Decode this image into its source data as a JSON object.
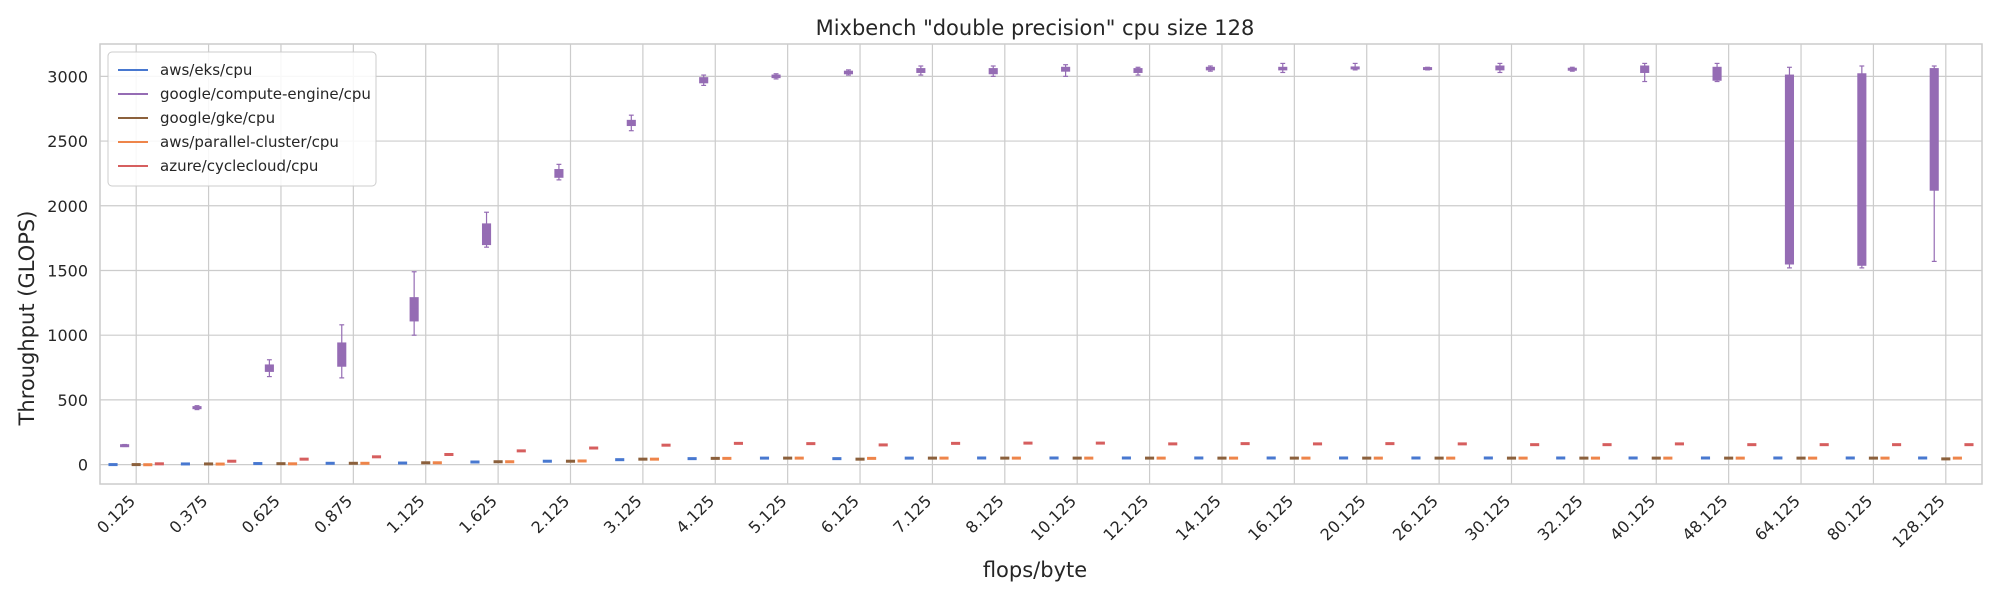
{
  "chart_data": {
    "type": "box",
    "title": "Mixbench \"double precision\" cpu size 128",
    "xlabel": "flops/byte",
    "ylabel": "Throughput (GLOPS)",
    "ylim": [
      -150,
      3250
    ],
    "yticks": [
      0,
      500,
      1000,
      1500,
      2000,
      2500,
      3000
    ],
    "grid": true,
    "legend_position": "top-left",
    "categories": [
      "0.125",
      "0.375",
      "0.625",
      "0.875",
      "1.125",
      "1.625",
      "2.125",
      "3.125",
      "4.125",
      "5.125",
      "6.125",
      "7.125",
      "8.125",
      "10.125",
      "12.125",
      "14.125",
      "16.125",
      "20.125",
      "26.125",
      "30.125",
      "32.125",
      "40.125",
      "48.125",
      "64.125",
      "80.125",
      "128.125"
    ],
    "series": [
      {
        "name": "aws/eks/cpu",
        "color": "#4878d0",
        "boxes": [
          [
            -2,
            -1,
            0,
            1,
            2
          ],
          [
            3,
            4,
            5,
            6,
            7
          ],
          [
            6,
            7,
            8,
            9,
            10
          ],
          [
            8,
            9,
            10,
            11,
            12
          ],
          [
            10,
            11,
            12,
            13,
            14
          ],
          [
            18,
            19,
            20,
            21,
            22
          ],
          [
            24,
            25,
            26,
            27,
            28
          ],
          [
            36,
            37,
            38,
            39,
            40
          ],
          [
            44,
            45,
            46,
            47,
            48
          ],
          [
            48,
            49,
            50,
            51,
            52
          ],
          [
            44,
            45,
            46,
            47,
            48
          ],
          [
            48,
            49,
            50,
            51,
            52
          ],
          [
            49,
            50,
            51,
            52,
            53
          ],
          [
            49,
            50,
            51,
            52,
            53
          ],
          [
            49,
            50,
            51,
            52,
            53
          ],
          [
            49,
            50,
            51,
            52,
            53
          ],
          [
            49,
            50,
            51,
            52,
            53
          ],
          [
            49,
            50,
            51,
            52,
            53
          ],
          [
            49,
            50,
            51,
            52,
            53
          ],
          [
            49,
            50,
            51,
            52,
            53
          ],
          [
            49,
            50,
            51,
            52,
            53
          ],
          [
            49,
            50,
            51,
            52,
            53
          ],
          [
            49,
            50,
            51,
            52,
            53
          ],
          [
            49,
            50,
            51,
            52,
            53
          ],
          [
            49,
            50,
            51,
            52,
            53
          ],
          [
            49,
            50,
            51,
            52,
            53
          ]
        ]
      },
      {
        "name": "google/compute-engine/cpu",
        "color": "#956cb4",
        "boxes": [
          [
            140,
            142,
            146,
            150,
            155
          ],
          [
            425,
            432,
            440,
            448,
            455
          ],
          [
            680,
            720,
            745,
            770,
            810
          ],
          [
            670,
            760,
            850,
            940,
            1080
          ],
          [
            1000,
            1110,
            1200,
            1290,
            1490
          ],
          [
            1680,
            1700,
            1780,
            1860,
            1950
          ],
          [
            2200,
            2220,
            2250,
            2280,
            2320
          ],
          [
            2580,
            2620,
            2640,
            2660,
            2700
          ],
          [
            2930,
            2950,
            2970,
            2990,
            3010
          ],
          [
            2980,
            2990,
            3000,
            3010,
            3020
          ],
          [
            3010,
            3020,
            3030,
            3040,
            3050
          ],
          [
            3010,
            3030,
            3040,
            3060,
            3080
          ],
          [
            3000,
            3020,
            3040,
            3060,
            3080
          ],
          [
            3000,
            3040,
            3050,
            3070,
            3090
          ],
          [
            3010,
            3030,
            3040,
            3060,
            3070
          ],
          [
            3040,
            3050,
            3060,
            3070,
            3080
          ],
          [
            3030,
            3050,
            3060,
            3070,
            3100
          ],
          [
            3050,
            3060,
            3065,
            3070,
            3100
          ],
          [
            3050,
            3055,
            3060,
            3065,
            3070
          ],
          [
            3030,
            3050,
            3060,
            3080,
            3100
          ],
          [
            3040,
            3050,
            3055,
            3060,
            3070
          ],
          [
            2960,
            3030,
            3060,
            3080,
            3100
          ],
          [
            2960,
            2970,
            3020,
            3070,
            3100
          ],
          [
            1520,
            1550,
            2200,
            3010,
            3070
          ],
          [
            1520,
            1540,
            2150,
            3020,
            3080
          ],
          [
            1570,
            2120,
            2700,
            3060,
            3080
          ]
        ]
      },
      {
        "name": "google/gke/cpu",
        "color": "#8c613c",
        "boxes": [
          [
            -2,
            -1,
            0,
            1,
            2
          ],
          [
            3,
            4,
            5,
            6,
            7
          ],
          [
            5,
            6,
            7,
            8,
            9
          ],
          [
            8,
            9,
            10,
            11,
            12
          ],
          [
            12,
            13,
            14,
            15,
            16
          ],
          [
            20,
            21,
            22,
            23,
            24
          ],
          [
            24,
            25,
            26,
            27,
            28
          ],
          [
            40,
            41,
            42,
            43,
            44
          ],
          [
            46,
            47,
            48,
            49,
            50
          ],
          [
            48,
            49,
            50,
            51,
            52
          ],
          [
            40,
            41,
            42,
            43,
            44
          ],
          [
            48,
            49,
            50,
            51,
            52
          ],
          [
            48,
            49,
            50,
            51,
            52
          ],
          [
            48,
            49,
            50,
            51,
            52
          ],
          [
            48,
            49,
            50,
            51,
            52
          ],
          [
            48,
            49,
            50,
            51,
            52
          ],
          [
            48,
            49,
            50,
            51,
            52
          ],
          [
            48,
            49,
            50,
            51,
            52
          ],
          [
            48,
            49,
            50,
            51,
            52
          ],
          [
            48,
            49,
            50,
            51,
            52
          ],
          [
            48,
            49,
            50,
            51,
            52
          ],
          [
            48,
            49,
            50,
            51,
            52
          ],
          [
            48,
            49,
            50,
            51,
            52
          ],
          [
            48,
            49,
            50,
            51,
            52
          ],
          [
            48,
            49,
            50,
            51,
            52
          ],
          [
            42,
            43,
            44,
            45,
            46
          ]
        ]
      },
      {
        "name": "aws/parallel-cluster/cpu",
        "color": "#ee854a",
        "boxes": [
          [
            -3,
            -2,
            -1,
            0,
            1
          ],
          [
            2,
            3,
            4,
            5,
            6
          ],
          [
            4,
            5,
            6,
            7,
            8
          ],
          [
            8,
            9,
            10,
            11,
            12
          ],
          [
            12,
            13,
            14,
            15,
            16
          ],
          [
            20,
            21,
            22,
            23,
            24
          ],
          [
            26,
            27,
            28,
            29,
            30
          ],
          [
            40,
            41,
            42,
            43,
            44
          ],
          [
            46,
            47,
            48,
            49,
            50
          ],
          [
            48,
            49,
            50,
            51,
            52
          ],
          [
            46,
            47,
            48,
            49,
            50
          ],
          [
            48,
            49,
            50,
            51,
            52
          ],
          [
            48,
            49,
            50,
            51,
            52
          ],
          [
            48,
            49,
            50,
            51,
            52
          ],
          [
            48,
            49,
            50,
            51,
            52
          ],
          [
            48,
            49,
            50,
            51,
            52
          ],
          [
            48,
            49,
            50,
            51,
            52
          ],
          [
            48,
            49,
            50,
            51,
            52
          ],
          [
            48,
            49,
            50,
            51,
            52
          ],
          [
            48,
            49,
            50,
            51,
            52
          ],
          [
            48,
            49,
            50,
            51,
            52
          ],
          [
            48,
            49,
            50,
            51,
            52
          ],
          [
            48,
            49,
            50,
            51,
            52
          ],
          [
            48,
            49,
            50,
            51,
            52
          ],
          [
            48,
            49,
            50,
            51,
            52
          ],
          [
            48,
            49,
            50,
            51,
            52
          ]
        ]
      },
      {
        "name": "azure/cyclecloud/cpu",
        "color": "#d65f5f",
        "boxes": [
          [
            4,
            5,
            6,
            7,
            8
          ],
          [
            24,
            25,
            26,
            27,
            28
          ],
          [
            40,
            41,
            42,
            43,
            44
          ],
          [
            58,
            59,
            60,
            61,
            62
          ],
          [
            76,
            77,
            78,
            79,
            80
          ],
          [
            104,
            105,
            106,
            107,
            108
          ],
          [
            126,
            127,
            128,
            129,
            130
          ],
          [
            148,
            149,
            150,
            151,
            152
          ],
          [
            162,
            163,
            164,
            165,
            166
          ],
          [
            160,
            161,
            162,
            163,
            164
          ],
          [
            150,
            151,
            152,
            153,
            154
          ],
          [
            162,
            163,
            164,
            165,
            166
          ],
          [
            164,
            165,
            166,
            167,
            168
          ],
          [
            164,
            165,
            166,
            167,
            168
          ],
          [
            158,
            159,
            160,
            161,
            162
          ],
          [
            160,
            161,
            162,
            163,
            164
          ],
          [
            158,
            159,
            160,
            161,
            162
          ],
          [
            160,
            161,
            162,
            163,
            164
          ],
          [
            158,
            159,
            160,
            161,
            162
          ],
          [
            152,
            153,
            154,
            155,
            156
          ],
          [
            152,
            153,
            154,
            155,
            156
          ],
          [
            158,
            159,
            160,
            161,
            162
          ],
          [
            152,
            153,
            154,
            155,
            156
          ],
          [
            152,
            153,
            154,
            155,
            156
          ],
          [
            152,
            153,
            154,
            155,
            156
          ],
          [
            152,
            153,
            154,
            155,
            156
          ]
        ]
      }
    ]
  }
}
